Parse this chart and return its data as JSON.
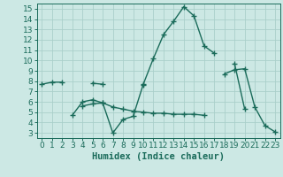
{
  "xlabel": "Humidex (Indice chaleur)",
  "x": [
    0,
    1,
    2,
    3,
    4,
    5,
    6,
    7,
    8,
    9,
    10,
    11,
    12,
    13,
    14,
    15,
    16,
    17,
    18,
    19,
    20,
    21,
    22,
    23
  ],
  "line1": [
    7.7,
    7.9,
    7.9,
    null,
    null,
    7.8,
    7.7,
    null,
    null,
    null,
    7.6,
    null,
    null,
    null,
    null,
    null,
    null,
    null,
    null,
    null,
    null,
    null,
    null,
    null
  ],
  "line2": [
    null,
    null,
    null,
    4.7,
    6.0,
    6.2,
    5.9,
    3.0,
    4.3,
    4.6,
    7.7,
    10.2,
    12.5,
    13.8,
    15.2,
    14.3,
    11.4,
    10.7,
    null,
    9.7,
    5.3,
    null,
    null,
    null
  ],
  "line3": [
    null,
    null,
    null,
    null,
    5.6,
    5.8,
    5.9,
    5.5,
    5.3,
    5.1,
    5.0,
    4.9,
    4.9,
    4.8,
    4.8,
    4.8,
    4.7,
    null,
    8.7,
    9.1,
    9.2,
    5.5,
    3.7,
    3.1
  ],
  "line_color": "#1a6b5a",
  "bg_color": "#cce8e4",
  "grid_color": "#aacfca",
  "xlim": [
    -0.5,
    23.5
  ],
  "ylim": [
    2.5,
    15.5
  ],
  "yticks": [
    3,
    4,
    5,
    6,
    7,
    8,
    9,
    10,
    11,
    12,
    13,
    14,
    15
  ],
  "xticks": [
    0,
    1,
    2,
    3,
    4,
    5,
    6,
    7,
    8,
    9,
    10,
    11,
    12,
    13,
    14,
    15,
    16,
    17,
    18,
    19,
    20,
    21,
    22,
    23
  ],
  "marker": "+",
  "markersize": 4,
  "linewidth": 1.0,
  "tick_fontsize": 6.5,
  "xlabel_fontsize": 7.5
}
